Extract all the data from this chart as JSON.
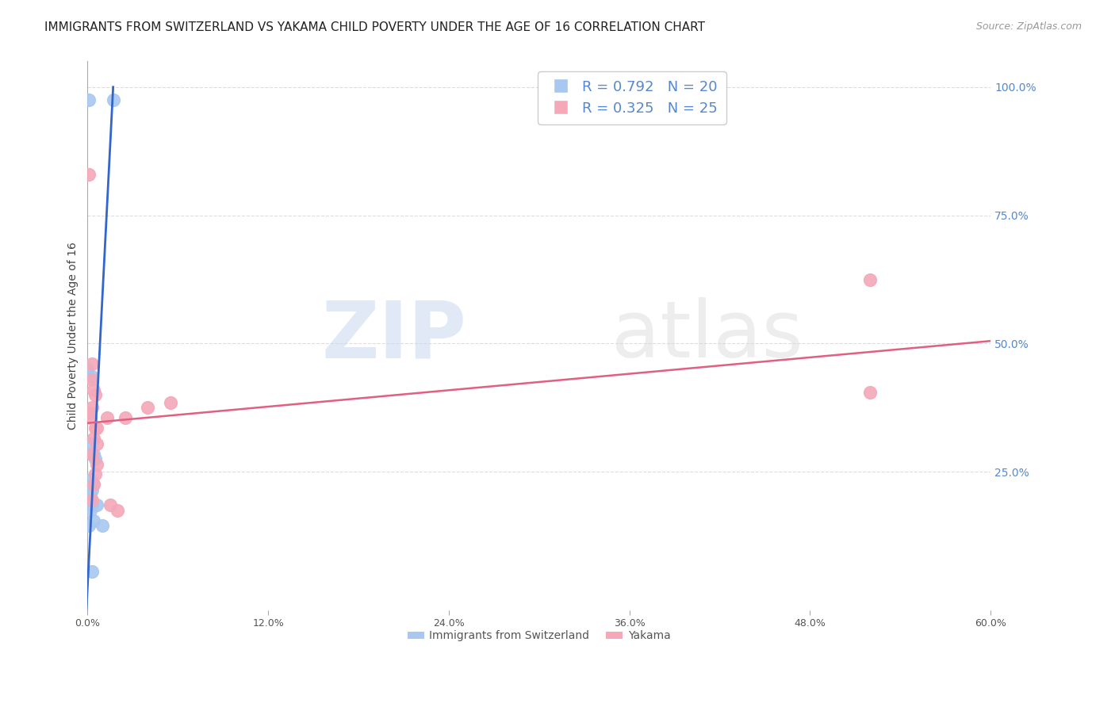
{
  "title": "IMMIGRANTS FROM SWITZERLAND VS YAKAMA CHILD POVERTY UNDER THE AGE OF 16 CORRELATION CHART",
  "source": "Source: ZipAtlas.com",
  "ylabel": "Child Poverty Under the Age of 16",
  "legend_label_blue": "Immigrants from Switzerland",
  "legend_label_pink": "Yakama",
  "legend_R_blue": "R = 0.792",
  "legend_N_blue": "N = 20",
  "legend_R_pink": "R = 0.325",
  "legend_N_pink": "N = 25",
  "xlim": [
    0.0,
    0.6
  ],
  "ylim": [
    -0.02,
    1.05
  ],
  "xticks": [
    0.0,
    0.12,
    0.24,
    0.36,
    0.48,
    0.6
  ],
  "yticks_right": [
    0.25,
    0.5,
    0.75,
    1.0
  ],
  "watermark_zip": "ZIP",
  "watermark_atlas": "atlas",
  "blue_color": "#A8C8F0",
  "pink_color": "#F4A8B8",
  "blue_line_color": "#3366CC",
  "pink_line_color": "#E06080",
  "blue_scatter": [
    [
      0.001,
      0.975
    ],
    [
      0.017,
      0.975
    ],
    [
      0.0,
      0.45
    ],
    [
      0.003,
      0.435
    ],
    [
      0.002,
      0.305
    ],
    [
      0.003,
      0.285
    ],
    [
      0.004,
      0.285
    ],
    [
      0.005,
      0.275
    ],
    [
      0.002,
      0.235
    ],
    [
      0.004,
      0.225
    ],
    [
      0.003,
      0.215
    ],
    [
      0.002,
      0.205
    ],
    [
      0.001,
      0.195
    ],
    [
      0.003,
      0.185
    ],
    [
      0.006,
      0.185
    ],
    [
      0.002,
      0.175
    ],
    [
      0.004,
      0.155
    ],
    [
      0.001,
      0.145
    ],
    [
      0.01,
      0.145
    ],
    [
      0.003,
      0.055
    ]
  ],
  "pink_scatter": [
    [
      0.001,
      0.83
    ],
    [
      0.003,
      0.46
    ],
    [
      0.003,
      0.43
    ],
    [
      0.004,
      0.41
    ],
    [
      0.005,
      0.4
    ],
    [
      0.003,
      0.375
    ],
    [
      0.001,
      0.365
    ],
    [
      0.002,
      0.355
    ],
    [
      0.006,
      0.335
    ],
    [
      0.005,
      0.335
    ],
    [
      0.004,
      0.315
    ],
    [
      0.006,
      0.305
    ],
    [
      0.003,
      0.285
    ],
    [
      0.006,
      0.265
    ],
    [
      0.005,
      0.245
    ],
    [
      0.004,
      0.225
    ],
    [
      0.013,
      0.355
    ],
    [
      0.025,
      0.355
    ],
    [
      0.04,
      0.375
    ],
    [
      0.055,
      0.385
    ],
    [
      0.015,
      0.185
    ],
    [
      0.02,
      0.175
    ],
    [
      0.52,
      0.625
    ],
    [
      0.52,
      0.405
    ],
    [
      0.003,
      0.195
    ]
  ],
  "blue_line_x": [
    -0.001,
    0.017
  ],
  "blue_line_y": [
    -0.03,
    1.0
  ],
  "pink_line_x": [
    0.0,
    0.6
  ],
  "pink_line_y": [
    0.345,
    0.505
  ],
  "title_fontsize": 11,
  "source_fontsize": 9,
  "axis_label_fontsize": 10,
  "tick_fontsize": 9,
  "legend_fontsize": 13,
  "background_color": "#FFFFFF",
  "grid_color": "#DDDDDD",
  "right_tick_color": "#5588CC",
  "left_border_color": "#AAAAAA"
}
